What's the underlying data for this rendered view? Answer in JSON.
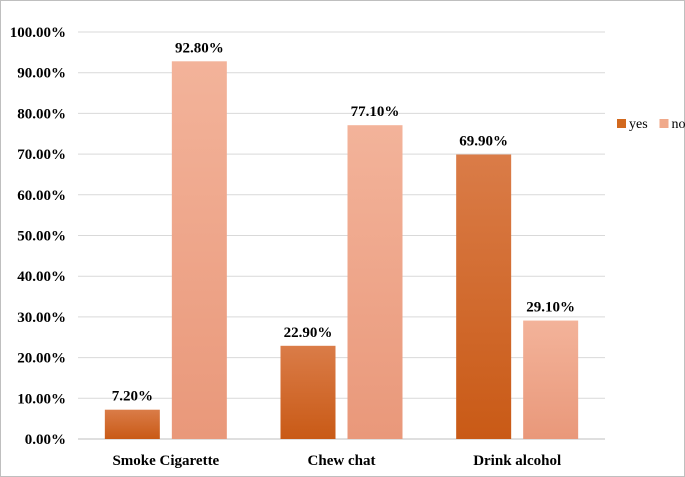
{
  "chart_data": {
    "type": "bar",
    "categories": [
      "Smoke Cigarette",
      "Chew chat",
      "Drink alcohol"
    ],
    "series": [
      {
        "name": "yes",
        "values": [
          7.2,
          22.9,
          69.9
        ],
        "labels": [
          "7.20%",
          "22.90%",
          "69.90%"
        ]
      },
      {
        "name": "no",
        "values": [
          92.8,
          77.1,
          29.1
        ],
        "labels": [
          "92.80%",
          "77.10%",
          "29.10%"
        ]
      }
    ],
    "yticks": [
      "0.00%",
      "10.00%",
      "20.00%",
      "30.00%",
      "40.00%",
      "50.00%",
      "60.00%",
      "70.00%",
      "80.00%",
      "90.00%",
      "100.00%"
    ],
    "ylim": [
      0,
      100
    ],
    "grid": true,
    "legend": "right",
    "colors": {
      "yes": "#d2691e",
      "no": "#f0a98a"
    }
  }
}
